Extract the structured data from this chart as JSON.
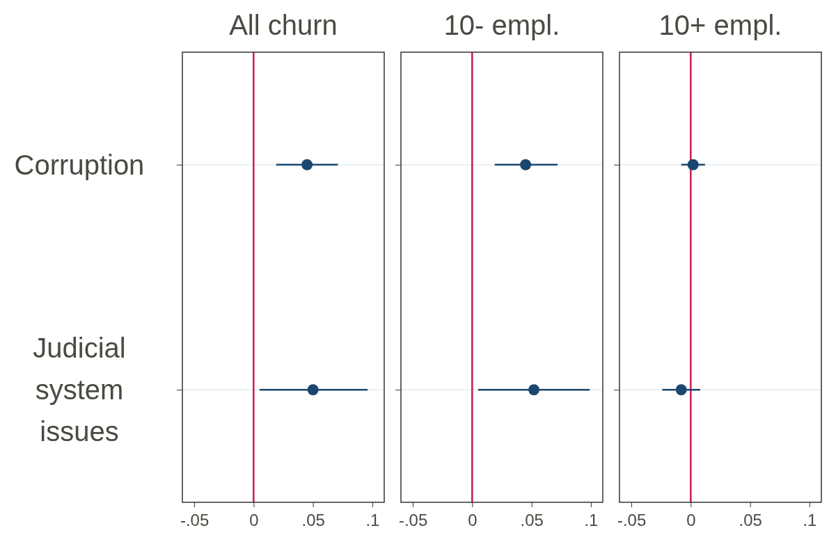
{
  "chart_data": [
    {
      "type": "scatter",
      "title": "All churn",
      "orientation": "horizontal",
      "categories": [
        "Corruption",
        "Judicial system issues"
      ],
      "color": "#1a476f",
      "values": [
        0.045,
        0.05
      ],
      "errors": [
        [
          0.019,
          0.071
        ],
        [
          0.005,
          0.096
        ]
      ],
      "xlim": [
        -0.06,
        0.11
      ],
      "xticks": [
        {
          "value": -0.05,
          "label": "-.05"
        },
        {
          "value": 0,
          "label": "0"
        },
        {
          "value": 0.05,
          "label": ".05"
        },
        {
          "value": 0.1,
          "label": ".1"
        }
      ],
      "grid": "y",
      "marker": "circle",
      "ref_lines": [
        {
          "axis": "x",
          "value": 0,
          "color": "#c8194f"
        }
      ]
    },
    {
      "type": "scatter",
      "title": "10- empl.",
      "orientation": "horizontal",
      "categories": [
        null,
        null
      ],
      "color": "#1a476f",
      "values": [
        0.045,
        0.052
      ],
      "errors": [
        [
          0.019,
          0.072
        ],
        [
          0.005,
          0.099
        ]
      ],
      "xlim": [
        -0.06,
        0.11
      ],
      "xticks": [
        {
          "value": -0.05,
          "label": "-.05"
        },
        {
          "value": 0,
          "label": "0"
        },
        {
          "value": 0.05,
          "label": ".05"
        },
        {
          "value": 0.1,
          "label": ".1"
        }
      ],
      "grid": "y",
      "marker": "circle",
      "tick_labels": "x",
      "ref_lines": [
        {
          "axis": "x",
          "value": 0,
          "color": "#c8194f"
        }
      ]
    },
    {
      "type": "scatter",
      "title": "10+ empl.",
      "orientation": "horizontal",
      "categories": [
        null,
        null
      ],
      "color": "#1a476f",
      "values": [
        0.002,
        -0.008
      ],
      "errors": [
        [
          -0.008,
          0.012
        ],
        [
          -0.024,
          0.008
        ]
      ],
      "xlim": [
        -0.06,
        0.11
      ],
      "xticks": [
        {
          "value": -0.05,
          "label": "-.05"
        },
        {
          "value": 0,
          "label": "0"
        },
        {
          "value": 0.05,
          "label": ".05"
        },
        {
          "value": 0.1,
          "label": ".1"
        }
      ],
      "grid": "y",
      "marker": "circle",
      "tick_labels": "x",
      "ref_lines": [
        {
          "axis": "x",
          "value": 0,
          "color": "#c8194f"
        }
      ]
    }
  ]
}
